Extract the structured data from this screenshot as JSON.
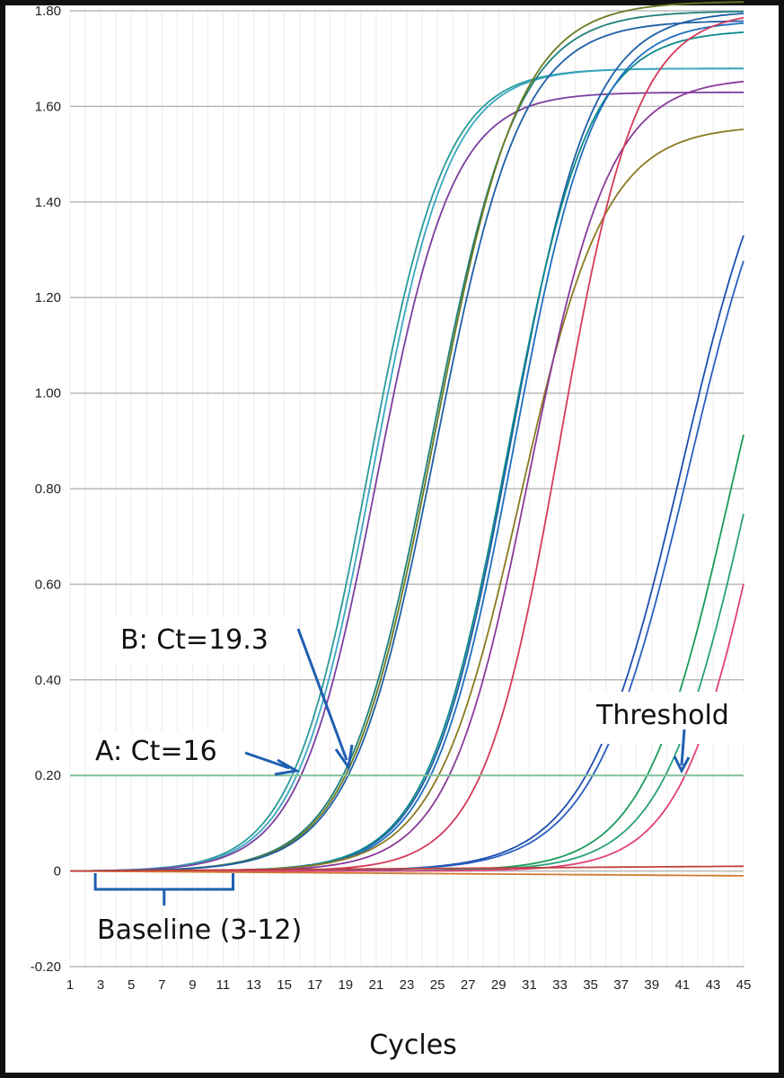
{
  "chart_data": {
    "type": "line",
    "xlabel": "Cycles",
    "ylabel": "",
    "xlim": [
      1,
      45
    ],
    "ylim": [
      -0.2,
      1.8
    ],
    "x_ticks": [
      "1",
      "3",
      "5",
      "7",
      "9",
      "11",
      "13",
      "15",
      "17",
      "19",
      "21",
      "23",
      "25",
      "27",
      "29",
      "31",
      "33",
      "35",
      "37",
      "39",
      "41",
      "43",
      "45"
    ],
    "y_ticks": [
      "-0.20",
      "0",
      "0.20",
      "0.40",
      "0.60",
      "0.80",
      "1.00",
      "1.20",
      "1.40",
      "1.60",
      "1.80"
    ],
    "grid": "horizontal",
    "threshold": {
      "label": "Threshold",
      "value": 0.2,
      "color": "#7fbf99"
    },
    "baseline": {
      "label": "Baseline (3-12)",
      "start": 3,
      "end": 12
    },
    "annotations": [
      {
        "label": "A: Ct=16",
        "x": 16,
        "y": 0.2
      },
      {
        "label": "B: Ct=19.3",
        "x": 19.3,
        "y": 0.2
      }
    ],
    "series": [
      {
        "color": "#2a9a9a",
        "mid": 20.5,
        "k": 0.4,
        "top": 1.68
      },
      {
        "color": "#3aa6c0",
        "mid": 20.8,
        "k": 0.4,
        "top": 1.68
      },
      {
        "color": "#7a3fa0",
        "mid": 21.0,
        "k": 0.4,
        "top": 1.63
      },
      {
        "color": "#1f7f7a",
        "mid": 24.6,
        "k": 0.36,
        "top": 1.8
      },
      {
        "color": "#6a7a20",
        "mid": 24.8,
        "k": 0.36,
        "top": 1.82
      },
      {
        "color": "#1f5fa6",
        "mid": 24.9,
        "k": 0.36,
        "top": 1.78
      },
      {
        "color": "#1f5fa6",
        "mid": 29.8,
        "k": 0.38,
        "top": 1.8
      },
      {
        "color": "#0d8a8a",
        "mid": 29.6,
        "k": 0.38,
        "top": 1.76
      },
      {
        "color": "#1f6fc0",
        "mid": 30.0,
        "k": 0.38,
        "top": 1.78
      },
      {
        "color": "#8a7a20",
        "mid": 30.4,
        "k": 0.36,
        "top": 1.56
      },
      {
        "color": "#8a3a9a",
        "mid": 31.0,
        "k": 0.38,
        "top": 1.66
      },
      {
        "color": "#d63a5a",
        "mid": 33.0,
        "k": 0.4,
        "top": 1.8
      },
      {
        "color": "#1f4fb0",
        "mid": 41.0,
        "k": 0.32,
        "top": 1.7
      },
      {
        "color": "#2a5fc0",
        "mid": 41.4,
        "k": 0.32,
        "top": 1.68
      },
      {
        "color": "#1a9a5a",
        "mid": 44.0,
        "k": 0.36,
        "top": 1.55
      },
      {
        "color": "#2aa07a",
        "mid": 45.2,
        "k": 0.36,
        "top": 1.55
      },
      {
        "color": "#e0407a",
        "mid": 46.2,
        "k": 0.38,
        "top": 1.55
      },
      {
        "color": "#d07a30",
        "mid": null,
        "flat": -0.01
      },
      {
        "color": "#c04040",
        "mid": null,
        "flat": 0.01
      }
    ]
  }
}
